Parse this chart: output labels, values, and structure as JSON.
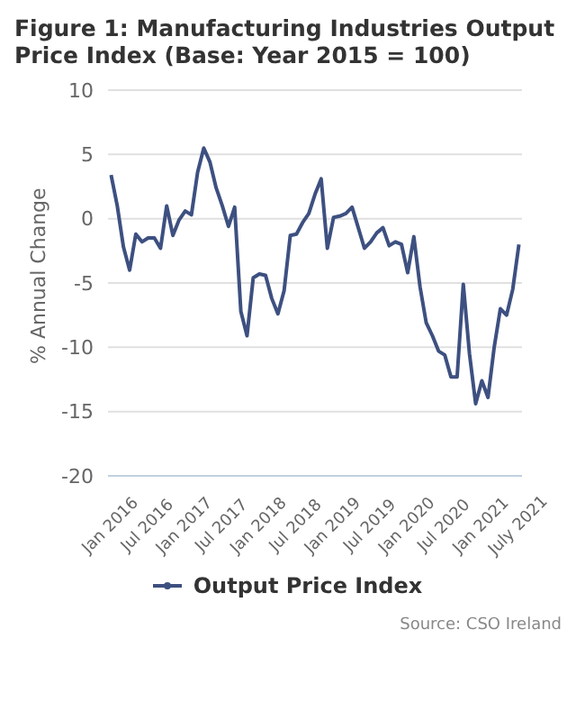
{
  "chart_data": {
    "type": "line",
    "title": "Figure 1: Manufacturing Industries Output Price Index (Base: Year 2015 = 100)",
    "ylabel": "% Annual Change",
    "categories": [
      "Jan 2016",
      null,
      null,
      null,
      null,
      null,
      "Jul 2016",
      null,
      null,
      null,
      null,
      null,
      "Jan 2017",
      null,
      null,
      null,
      null,
      null,
      "Jul 2017",
      null,
      null,
      null,
      null,
      null,
      "Jan 2018",
      null,
      null,
      null,
      null,
      null,
      "Jul 2018",
      null,
      null,
      null,
      null,
      null,
      "Jan 2019",
      null,
      null,
      null,
      null,
      null,
      "Jul 2019",
      null,
      null,
      null,
      null,
      null,
      "Jan 2020",
      null,
      null,
      null,
      null,
      null,
      "Jul 2020",
      null,
      null,
      null,
      null,
      null,
      "Jan 2021",
      null,
      null,
      null,
      null,
      null,
      "July 2021"
    ],
    "series": [
      {
        "name": "Output Price Index",
        "color": "#3d5080",
        "values": [
          3.4,
          1.0,
          -2.2,
          -4.0,
          -1.2,
          -1.8,
          -1.5,
          -1.5,
          -2.3,
          1.0,
          -1.3,
          -0.1,
          0.6,
          0.3,
          3.6,
          5.5,
          4.4,
          2.4,
          1.0,
          -0.6,
          0.9,
          -7.2,
          -9.1,
          -4.6,
          -4.3,
          -4.4,
          -6.2,
          -7.4,
          -5.6,
          -1.3,
          -1.2,
          -0.3,
          0.4,
          1.9,
          3.1,
          -2.3,
          0.1,
          0.2,
          0.4,
          0.9,
          -0.7,
          -2.3,
          -1.8,
          -1.1,
          -0.7,
          -2.1,
          -1.8,
          -2.0,
          -4.2,
          -1.4,
          -5.3,
          -8.1,
          -9.1,
          -10.3,
          -10.6,
          -12.3,
          -12.3,
          -5.1,
          -10.5,
          -14.4,
          -12.6,
          -13.9,
          -10.0,
          -7.0,
          -7.5,
          -5.5,
          -2.0
        ]
      }
    ],
    "ylim": [
      -20,
      10
    ],
    "yticks": [
      -20,
      -15,
      -10,
      -5,
      0,
      5,
      10
    ],
    "grid": "y",
    "legend": "bottom",
    "line_style": "solid",
    "annotations": [
      "Source: CSO Ireland"
    ]
  }
}
